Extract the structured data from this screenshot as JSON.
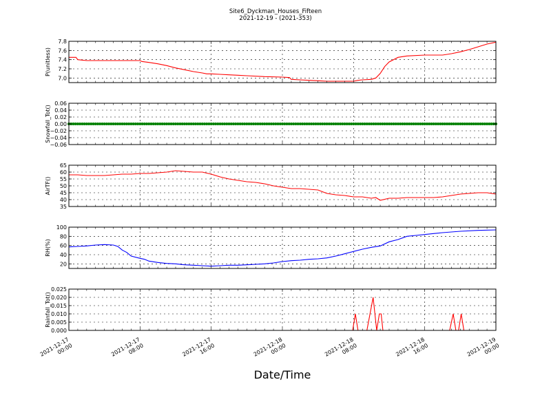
{
  "title": "Site6_Dyckman_Houses_Fifteen",
  "subtitle": "2021-12-19 - (2021-353)",
  "xlabel": "Date/Time",
  "x_ticks": [
    {
      "hour": 0,
      "line1": "2021-12-17",
      "line2": "00:00"
    },
    {
      "hour": 8,
      "line1": "2021-12-17",
      "line2": "08:00"
    },
    {
      "hour": 16,
      "line1": "2021-12-17",
      "line2": "16:00"
    },
    {
      "hour": 24,
      "line1": "2021-12-18",
      "line2": "00:00"
    },
    {
      "hour": 32,
      "line1": "2021-12-18",
      "line2": "08:00"
    },
    {
      "hour": 40,
      "line1": "2021-12-18",
      "line2": "16:00"
    },
    {
      "hour": 48,
      "line1": "2021-12-19",
      "line2": "00:00"
    }
  ],
  "chart_data": [
    {
      "type": "line",
      "ylabel": "P(unitless)",
      "color": "#ff0000",
      "ylim": [
        6.9,
        7.8
      ],
      "yticks": [
        7.0,
        7.2,
        7.4,
        7.6,
        7.8
      ],
      "ytick_labels": [
        "7.0",
        "7.2",
        "7.4",
        "7.6",
        "7.8"
      ],
      "grid": true,
      "x_hours": [
        0,
        0.8,
        1,
        2,
        4,
        6,
        8,
        8.2,
        9,
        10,
        11,
        12,
        13,
        14,
        15,
        15.5,
        16,
        17,
        18,
        19,
        20,
        22,
        24,
        24.8,
        25,
        26,
        27,
        28,
        29,
        30,
        31,
        32,
        32.5,
        33,
        34,
        34.5,
        35,
        35.5,
        36,
        37,
        38,
        40,
        42,
        43,
        44,
        45,
        46,
        47,
        48
      ],
      "y": [
        7.45,
        7.45,
        7.4,
        7.38,
        7.38,
        7.38,
        7.38,
        7.36,
        7.34,
        7.31,
        7.27,
        7.22,
        7.18,
        7.14,
        7.11,
        7.09,
        7.09,
        7.08,
        7.07,
        7.06,
        7.05,
        7.03,
        7.02,
        7.01,
        6.97,
        6.96,
        6.95,
        6.94,
        6.93,
        6.93,
        6.93,
        6.93,
        6.95,
        6.96,
        6.97,
        7.0,
        7.1,
        7.25,
        7.35,
        7.45,
        7.48,
        7.5,
        7.5,
        7.53,
        7.57,
        7.62,
        7.68,
        7.74,
        7.78
      ]
    },
    {
      "type": "scatter",
      "ylabel": "Snowfall_Tot()",
      "color": "#008000",
      "ylim": [
        -0.06,
        0.06
      ],
      "yticks": [
        -0.06,
        -0.04,
        -0.02,
        0.0,
        0.02,
        0.04,
        0.06
      ],
      "ytick_labels": [
        "−0.06",
        "−0.04",
        "−0.02",
        "0.00",
        "0.02",
        "0.04",
        "0.06"
      ],
      "grid": true,
      "constant_value": 0.0,
      "interval_minutes": 15
    },
    {
      "type": "line",
      "ylabel": "AirTF()",
      "color": "#ff0000",
      "ylim": [
        35,
        65
      ],
      "yticks": [
        35,
        40,
        45,
        50,
        55,
        60,
        65
      ],
      "ytick_labels": [
        "35",
        "40",
        "45",
        "50",
        "55",
        "60",
        "65"
      ],
      "grid": true,
      "x_hours": [
        0,
        1,
        2,
        3,
        4,
        5,
        6,
        7,
        8,
        9,
        10,
        11,
        12,
        13,
        14,
        15,
        16,
        17,
        18,
        19,
        20,
        21,
        22,
        23,
        24,
        25,
        26,
        27,
        28,
        29,
        30,
        31,
        32,
        33,
        34,
        34.5,
        35,
        36,
        37,
        38,
        39,
        40,
        41,
        42,
        43,
        44,
        45,
        46,
        47,
        48
      ],
      "y": [
        58,
        58,
        57.5,
        57.5,
        57.5,
        58,
        58.5,
        58.5,
        59,
        59,
        59.5,
        60,
        61,
        60.5,
        60,
        60,
        58.5,
        56.5,
        55,
        54,
        53,
        52.5,
        51.5,
        50,
        49,
        48,
        48,
        47.5,
        47,
        44.5,
        43.5,
        43,
        42,
        42,
        41,
        41.5,
        39.5,
        41,
        41,
        41.5,
        41.5,
        41.5,
        41.5,
        42,
        43,
        44,
        44.5,
        45,
        45,
        44
      ]
    },
    {
      "type": "line",
      "ylabel": "RH(%)",
      "color": "#0000ff",
      "ylim": [
        10,
        100
      ],
      "yticks": [
        20,
        40,
        60,
        80,
        100
      ],
      "ytick_labels": [
        "20",
        "40",
        "60",
        "80",
        "100"
      ],
      "grid": true,
      "x_hours": [
        0,
        1,
        2,
        3,
        4,
        5,
        5.5,
        6,
        6.5,
        7,
        8,
        8.5,
        9,
        10,
        11,
        12,
        13,
        14,
        15,
        16,
        17,
        18,
        19,
        20,
        21,
        22,
        23,
        24,
        25,
        26,
        27,
        28,
        29,
        30,
        31,
        32,
        33,
        34,
        35,
        36,
        37,
        38,
        39,
        40,
        41,
        42,
        44,
        46,
        48
      ],
      "y": [
        57,
        58,
        59,
        61,
        62,
        61,
        58,
        50,
        45,
        37,
        32,
        30,
        26,
        23,
        21,
        20,
        18,
        17,
        16,
        15,
        16,
        17,
        17,
        18,
        19,
        20,
        22,
        25,
        27,
        28,
        30,
        31,
        33,
        37,
        42,
        47,
        52,
        56,
        59,
        68,
        73,
        80,
        82,
        84,
        86,
        88,
        91,
        93,
        94
      ]
    },
    {
      "type": "line",
      "ylabel": "Rainfall_Tot()",
      "color": "#ff0000",
      "ylim": [
        0.0,
        0.025
      ],
      "yticks": [
        0.0,
        0.005,
        0.01,
        0.015,
        0.02,
        0.025
      ],
      "ytick_labels": [
        "0.000",
        "0.005",
        "0.010",
        "0.015",
        "0.020",
        "0.025"
      ],
      "grid": true,
      "x_hours": [
        0,
        31.9,
        32.2,
        32.5,
        33.5,
        34.2,
        34.6,
        34.9,
        35.1,
        35.3,
        35.6,
        42.8,
        43.2,
        43.5,
        43.8,
        44.1,
        44.4,
        48
      ],
      "y": [
        0,
        0,
        0.01,
        0,
        0,
        0.02,
        0,
        0.01,
        0.01,
        0,
        0,
        0,
        0.01,
        0,
        0,
        0.01,
        0,
        0
      ]
    }
  ]
}
